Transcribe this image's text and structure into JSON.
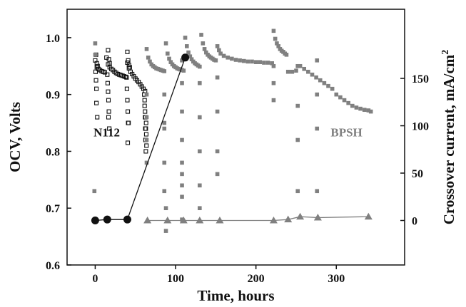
{
  "chart_data": {
    "type": "scatter",
    "title": "",
    "xlabel": "Time, hours",
    "ylabel": "OCV, Volts",
    "y2label": "Crossover current, mA/cm",
    "y2label_superscript": "2",
    "xlim": [
      -35,
      385
    ],
    "ylim": [
      0.6,
      1.05
    ],
    "y2lim": [
      -47,
      223
    ],
    "x_ticks": [
      0,
      100,
      200,
      300
    ],
    "y_ticks": [
      0.6,
      0.7,
      0.8,
      0.9,
      1.0
    ],
    "y2_ticks": [
      0,
      50,
      100,
      150
    ],
    "x_tick_labels": [
      "0",
      "100",
      "200",
      "300"
    ],
    "y_tick_labels": [
      "0.6",
      "0.7",
      "0.8",
      "0.9",
      "1.0"
    ],
    "y2_tick_labels": [
      "0",
      "50",
      "100",
      "150"
    ],
    "annotations": [
      {
        "text": "N112",
        "x": -2,
        "y": 0.826
      },
      {
        "text": "BPSH",
        "x": 293,
        "y": 0.826
      }
    ],
    "series": [
      {
        "key": "n112_ocv",
        "axis": "left",
        "color": "#111111",
        "marker": "open-square",
        "x": [
          0,
          2,
          4,
          6,
          8,
          10,
          12,
          14,
          16,
          18,
          20,
          22,
          24,
          26,
          28,
          30,
          32,
          34,
          36,
          38,
          40,
          42,
          44,
          46,
          48,
          50,
          52,
          54,
          56,
          58,
          60,
          62,
          0.5,
          1,
          1.5,
          15,
          15.5,
          16,
          16.5,
          17,
          39,
          39.5,
          40,
          40.5,
          41,
          61,
          61.5,
          62,
          62.3,
          62.6,
          63,
          63.3,
          63.5,
          63.8,
          1,
          2,
          3,
          1.5,
          2.5,
          16,
          17,
          18,
          40,
          41,
          42,
          43,
          16.5,
          17.5,
          40.5,
          41.5,
          61.5,
          62,
          62.5,
          63
        ],
        "y": [
          0.96,
          0.948,
          0.945,
          0.943,
          0.941,
          0.94,
          0.939,
          0.965,
          0.953,
          0.948,
          0.945,
          0.943,
          0.94,
          0.938,
          0.936,
          0.935,
          0.934,
          0.933,
          0.932,
          0.931,
          0.956,
          0.946,
          0.94,
          0.936,
          0.932,
          0.928,
          0.925,
          0.922,
          0.918,
          0.914,
          0.91,
          0.906,
          0.94,
          0.925,
          0.91,
          0.935,
          0.92,
          0.905,
          0.89,
          0.87,
          0.93,
          0.91,
          0.89,
          0.87,
          0.85,
          0.9,
          0.88,
          0.86,
          0.84,
          0.82,
          0.8,
          0.85,
          0.83,
          0.81,
          0.97,
          0.955,
          0.95,
          0.885,
          0.86,
          0.978,
          0.962,
          0.955,
          0.975,
          0.96,
          0.952,
          0.948,
          0.86,
          0.84,
          0.815,
          0.85,
          0.89,
          0.87,
          0.86,
          0.84
        ]
      },
      {
        "key": "bpsh_ocv",
        "axis": "left",
        "color": "#808080",
        "marker": "filled-square",
        "x": [
          64,
          66,
          68,
          70,
          72,
          74,
          76,
          78,
          80,
          82,
          84,
          86,
          88,
          90,
          92,
          94,
          96,
          98,
          100,
          102,
          104,
          106,
          108,
          110,
          112,
          114,
          116,
          118,
          120,
          122,
          124,
          126,
          128,
          130,
          132,
          134,
          136,
          138,
          140,
          142,
          144,
          146,
          148,
          150,
          152,
          154,
          156,
          160,
          165,
          170,
          175,
          180,
          185,
          190,
          195,
          200,
          205,
          210,
          215,
          220,
          222,
          224,
          226,
          228,
          230,
          232,
          234,
          236,
          238,
          240,
          245,
          250,
          255,
          260,
          265,
          270,
          275,
          280,
          285,
          290,
          295,
          300,
          305,
          310,
          315,
          320,
          325,
          330,
          335,
          340,
          343,
          64,
          64,
          64,
          64,
          86,
          86,
          86,
          86,
          86,
          88,
          88,
          108,
          108,
          108,
          108,
          108,
          108,
          108,
          108,
          108,
          130,
          130,
          130,
          130,
          130,
          152,
          152,
          152,
          152,
          222,
          222,
          222,
          252,
          252,
          252,
          252,
          276,
          276,
          276,
          276,
          0,
          0,
          -1
        ],
        "y": [
          0.98,
          0.965,
          0.958,
          0.953,
          0.95,
          0.948,
          0.946,
          0.945,
          0.944,
          0.943,
          0.942,
          0.941,
          0.99,
          0.972,
          0.963,
          0.957,
          0.953,
          0.95,
          0.948,
          0.946,
          0.945,
          0.944,
          0.943,
          0.942,
          1.0,
          0.985,
          0.974,
          0.967,
          0.962,
          0.958,
          0.955,
          0.953,
          0.951,
          0.949,
          1.005,
          0.99,
          0.98,
          0.974,
          0.97,
          0.967,
          0.965,
          0.963,
          0.961,
          0.96,
          0.985,
          0.978,
          0.972,
          0.968,
          0.965,
          0.963,
          0.961,
          0.96,
          0.959,
          0.958,
          0.958,
          0.957,
          0.957,
          0.956,
          0.956,
          0.955,
          1.012,
          0.998,
          0.99,
          0.985,
          0.98,
          0.977,
          0.975,
          0.972,
          0.97,
          0.94,
          0.94,
          0.942,
          0.95,
          0.945,
          0.94,
          0.935,
          0.93,
          0.925,
          0.92,
          0.915,
          0.91,
          0.9,
          0.895,
          0.89,
          0.885,
          0.88,
          0.877,
          0.875,
          0.873,
          0.872,
          0.87,
          0.9,
          0.86,
          0.82,
          0.78,
          0.9,
          0.84,
          0.78,
          0.73,
          0.85,
          0.7,
          0.66,
          0.96,
          0.92,
          0.87,
          0.82,
          0.78,
          0.76,
          0.74,
          0.72,
          0.68,
          0.92,
          0.86,
          0.8,
          0.74,
          0.7,
          0.93,
          0.87,
          0.8,
          0.76,
          0.95,
          0.92,
          0.89,
          0.95,
          0.88,
          0.82,
          0.73,
          0.96,
          0.9,
          0.84,
          0.73,
          0.99,
          0.97,
          0.73
        ]
      },
      {
        "key": "n112_crossover",
        "axis": "right",
        "color": "#111111",
        "marker": "filled-circle",
        "line": true,
        "x": [
          0,
          15,
          40,
          112
        ],
        "y": [
          0,
          1,
          1,
          172
        ]
      },
      {
        "key": "bpsh_crossover",
        "axis": "right",
        "color": "#808080",
        "marker": "filled-triangle",
        "line": true,
        "x": [
          65,
          90,
          110,
          130,
          155,
          222,
          240,
          255,
          277,
          340
        ],
        "y": [
          0,
          0,
          0,
          0,
          0,
          0,
          1,
          4,
          3,
          4
        ]
      }
    ]
  }
}
